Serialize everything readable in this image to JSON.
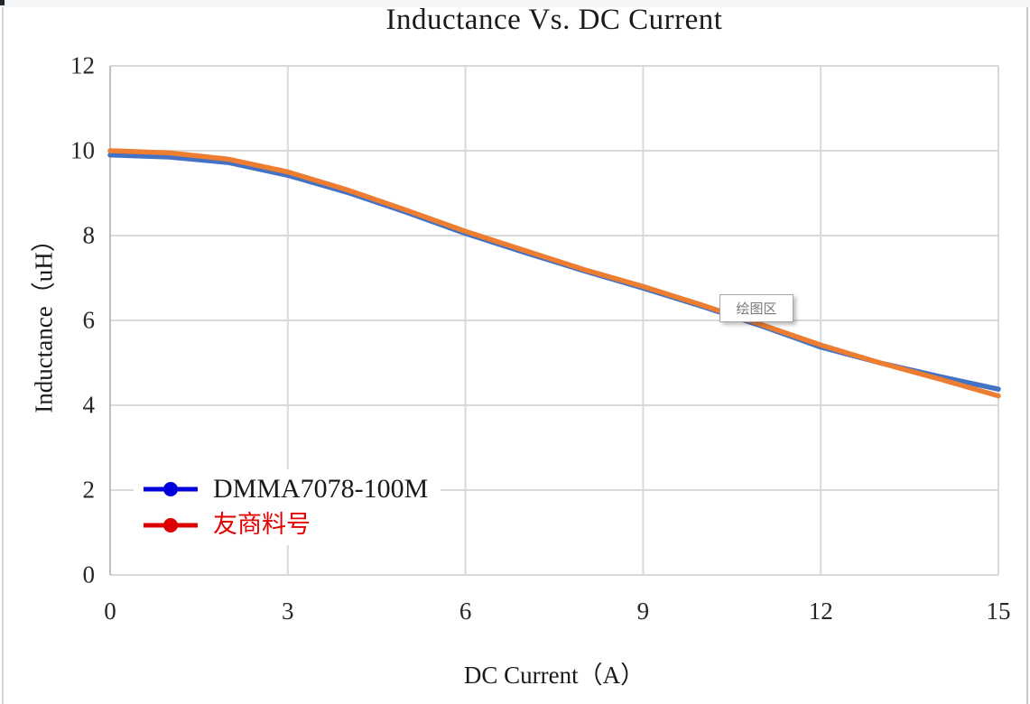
{
  "chart": {
    "title": "Inductance Vs. DC Current",
    "x_axis_title": "DC Current（A）",
    "y_axis_title": "Inductance（uH）"
  },
  "tooltip": {
    "text": "绘图区"
  },
  "chart_data": {
    "type": "line",
    "title": "Inductance Vs. DC Current",
    "xlabel": "DC Current（A）",
    "ylabel": "Inductance（uH）",
    "xlim": [
      0,
      15
    ],
    "ylim": [
      0,
      12
    ],
    "x_ticks": [
      0,
      3,
      6,
      9,
      12,
      15
    ],
    "y_ticks": [
      0,
      2,
      4,
      6,
      8,
      10,
      12
    ],
    "grid": true,
    "legend_position": "bottom-left-inside",
    "x": [
      0,
      1,
      2,
      3,
      4,
      5,
      6,
      7,
      8,
      9,
      10,
      11,
      12,
      13,
      14,
      15
    ],
    "series": [
      {
        "name": "DMMA7078-100M",
        "line_color": "#4472C4",
        "legend_marker_color": "#0000DD",
        "label_color": "#1a1a1a",
        "values": [
          9.9,
          9.85,
          9.72,
          9.42,
          9.02,
          8.55,
          8.05,
          7.6,
          7.17,
          6.76,
          6.33,
          5.87,
          5.37,
          5.0,
          4.68,
          4.38
        ]
      },
      {
        "name": "友商料号",
        "line_color": "#ED7D31",
        "legend_marker_color": "#DD0000",
        "label_color": "#E60000",
        "values": [
          10.0,
          9.95,
          9.8,
          9.5,
          9.08,
          8.6,
          8.1,
          7.65,
          7.2,
          6.8,
          6.36,
          5.9,
          5.42,
          5.0,
          4.62,
          4.22
        ]
      }
    ],
    "colors": {
      "grid": "#d9d9d9",
      "axis": "#bfbfbf",
      "tick_label": "#262626"
    }
  }
}
